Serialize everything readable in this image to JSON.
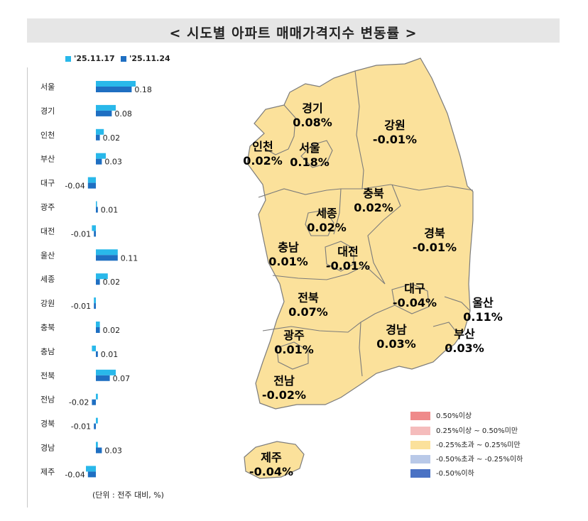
{
  "title": "< 시도별 아파트 매매가격지수 변동률 >",
  "unit_note": "(단위 : 전주 대비, %)",
  "colors": {
    "prev_week": "#29b8ea",
    "this_week": "#1f6fc2",
    "map_fill": "#fbe19b",
    "map_stroke": "#7b7b7b",
    "title_bg": "#e6e6e6"
  },
  "chart_data": {
    "type": "bar",
    "orientation": "horizontal",
    "categories": [
      "서울",
      "경기",
      "인천",
      "부산",
      "대구",
      "광주",
      "대전",
      "울산",
      "세종",
      "강원",
      "충북",
      "충남",
      "전북",
      "전남",
      "경북",
      "경남",
      "제주"
    ],
    "series": [
      {
        "name": "'25.11.17",
        "values": [
          0.2,
          0.1,
          0.04,
          0.05,
          -0.04,
          0.0,
          -0.02,
          0.11,
          0.06,
          -0.01,
          0.02,
          -0.02,
          0.1,
          0.01,
          0.01,
          0.01,
          -0.05
        ]
      },
      {
        "name": "'25.11.24",
        "values": [
          0.18,
          0.08,
          0.02,
          0.03,
          -0.04,
          0.01,
          -0.01,
          0.11,
          0.02,
          -0.01,
          0.02,
          0.01,
          0.07,
          -0.02,
          -0.01,
          0.03,
          -0.04
        ]
      }
    ],
    "data_labels": [
      "0.18",
      "0.08",
      "0.02",
      "0.03",
      "-0.04",
      "0.01",
      "-0.01",
      "0.11",
      "0.02",
      "-0.01",
      "0.02",
      "0.01",
      "0.07",
      "-0.02",
      "-0.01",
      "0.03",
      "-0.04"
    ]
  },
  "map": {
    "regions": [
      {
        "name": "경기",
        "value": "0.08%"
      },
      {
        "name": "강원",
        "value": "-0.01%"
      },
      {
        "name": "인천",
        "value": "0.02%"
      },
      {
        "name": "서울",
        "value": "0.18%"
      },
      {
        "name": "충북",
        "value": "0.02%"
      },
      {
        "name": "세종",
        "value": "0.02%"
      },
      {
        "name": "충남",
        "value": "0.01%"
      },
      {
        "name": "대전",
        "value": "-0.01%"
      },
      {
        "name": "경북",
        "value": "-0.01%"
      },
      {
        "name": "대구",
        "value": "-0.04%"
      },
      {
        "name": "전북",
        "value": "0.07%"
      },
      {
        "name": "울산",
        "value": "0.11%"
      },
      {
        "name": "광주",
        "value": "0.01%"
      },
      {
        "name": "경남",
        "value": "0.03%"
      },
      {
        "name": "부산",
        "value": "0.03%"
      },
      {
        "name": "전남",
        "value": "-0.02%"
      },
      {
        "name": "제주",
        "value": "-0.04%"
      }
    ],
    "legend": [
      {
        "label": "0.50%이상",
        "color": "#ef8a8a"
      },
      {
        "label": "0.25%이상 ~ 0.50%미만",
        "color": "#f5bcbc"
      },
      {
        "label": "-0.25%초과 ~ 0.25%미만",
        "color": "#fbe19b"
      },
      {
        "label": "-0.50%초과 ~ -0.25%이하",
        "color": "#b9c9e8"
      },
      {
        "label": "-0.50%이하",
        "color": "#4a72c4"
      }
    ]
  }
}
